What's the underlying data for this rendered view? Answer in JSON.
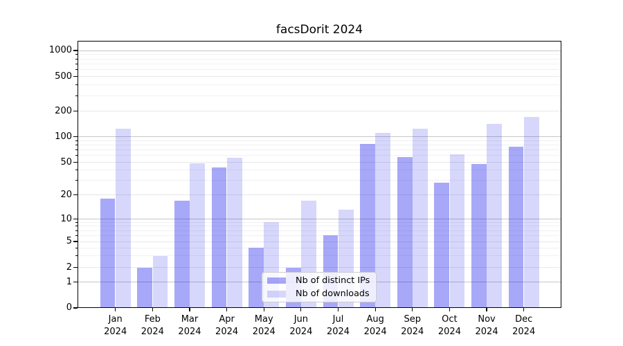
{
  "chart_data": {
    "type": "bar",
    "title": "facsDorit 2024",
    "months": [
      "Jan",
      "Feb",
      "Mar",
      "Apr",
      "May",
      "Jun",
      "Jul",
      "Aug",
      "Sep",
      "Oct",
      "Nov",
      "Dec"
    ],
    "year": "2024",
    "categories": [
      "Jan 2024",
      "Feb 2024",
      "Mar 2024",
      "Apr 2024",
      "May 2024",
      "Jun 2024",
      "Jul 2024",
      "Aug 2024",
      "Sep 2024",
      "Oct 2024",
      "Nov 2024",
      "Dec 2024"
    ],
    "series": [
      {
        "name": "Nb of distinct IPs",
        "color": "rgba(0,0,235,0.34)",
        "values": [
          18,
          2,
          17,
          43,
          4,
          2,
          6,
          82,
          58,
          28,
          48,
          76
        ]
      },
      {
        "name": "Nb of downloads",
        "color": "rgba(0,0,235,0.155)",
        "values": [
          123,
          3,
          49,
          57,
          9,
          17,
          13,
          110,
          125,
          62,
          142,
          172
        ]
      }
    ],
    "y_axis": {
      "scale": "symlog",
      "tick_labels": [
        "0",
        "1",
        "2",
        "5",
        "10",
        "20",
        "50",
        "100",
        "200",
        "500",
        "1000"
      ],
      "tick_values": [
        0,
        1,
        2,
        5,
        10,
        20,
        50,
        100,
        200,
        500,
        1000
      ],
      "ylim": [
        0,
        1100
      ]
    },
    "grid": true,
    "legend_position": "lower center",
    "colors": {
      "bar_ips": "#a9a9f8",
      "bar_downloads": "#d8d8fc",
      "grid_major": "#c6c6c6",
      "grid_minor": "#e7e7e7",
      "grid_subminor": "#f1f1f1",
      "axis": "#000000",
      "background": "#ffffff"
    }
  }
}
